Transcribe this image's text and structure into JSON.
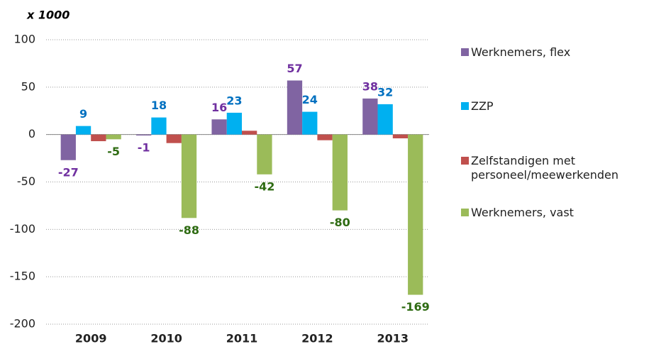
{
  "chart_data": {
    "type": "bar",
    "y_unit": "x 1000",
    "categories": [
      "2009",
      "2010",
      "2011",
      "2012",
      "2013"
    ],
    "series": [
      {
        "name": "Werknemers, flex",
        "color": "#8064a2",
        "label_color": "#7030a0",
        "values": [
          -27,
          -1,
          16,
          57,
          38
        ]
      },
      {
        "name": "ZZP",
        "color": "#00b0f0",
        "label_color": "#0070c0",
        "values": [
          9,
          18,
          23,
          24,
          32
        ]
      },
      {
        "name": "Zelfstandigen met personeel/meewerkenden",
        "color": "#c0504d",
        "values": [
          -7,
          -9,
          4,
          -6,
          -4
        ]
      },
      {
        "name": "Werknemers, vast",
        "color": "#9bbb59",
        "label_color": "#2e6b12",
        "values": [
          -5,
          -88,
          -42,
          -80,
          -169
        ]
      }
    ],
    "ylim": [
      -200,
      100
    ],
    "yticks": [
      -200,
      -150,
      -100,
      -50,
      0,
      50,
      100
    ],
    "grid": true
  }
}
